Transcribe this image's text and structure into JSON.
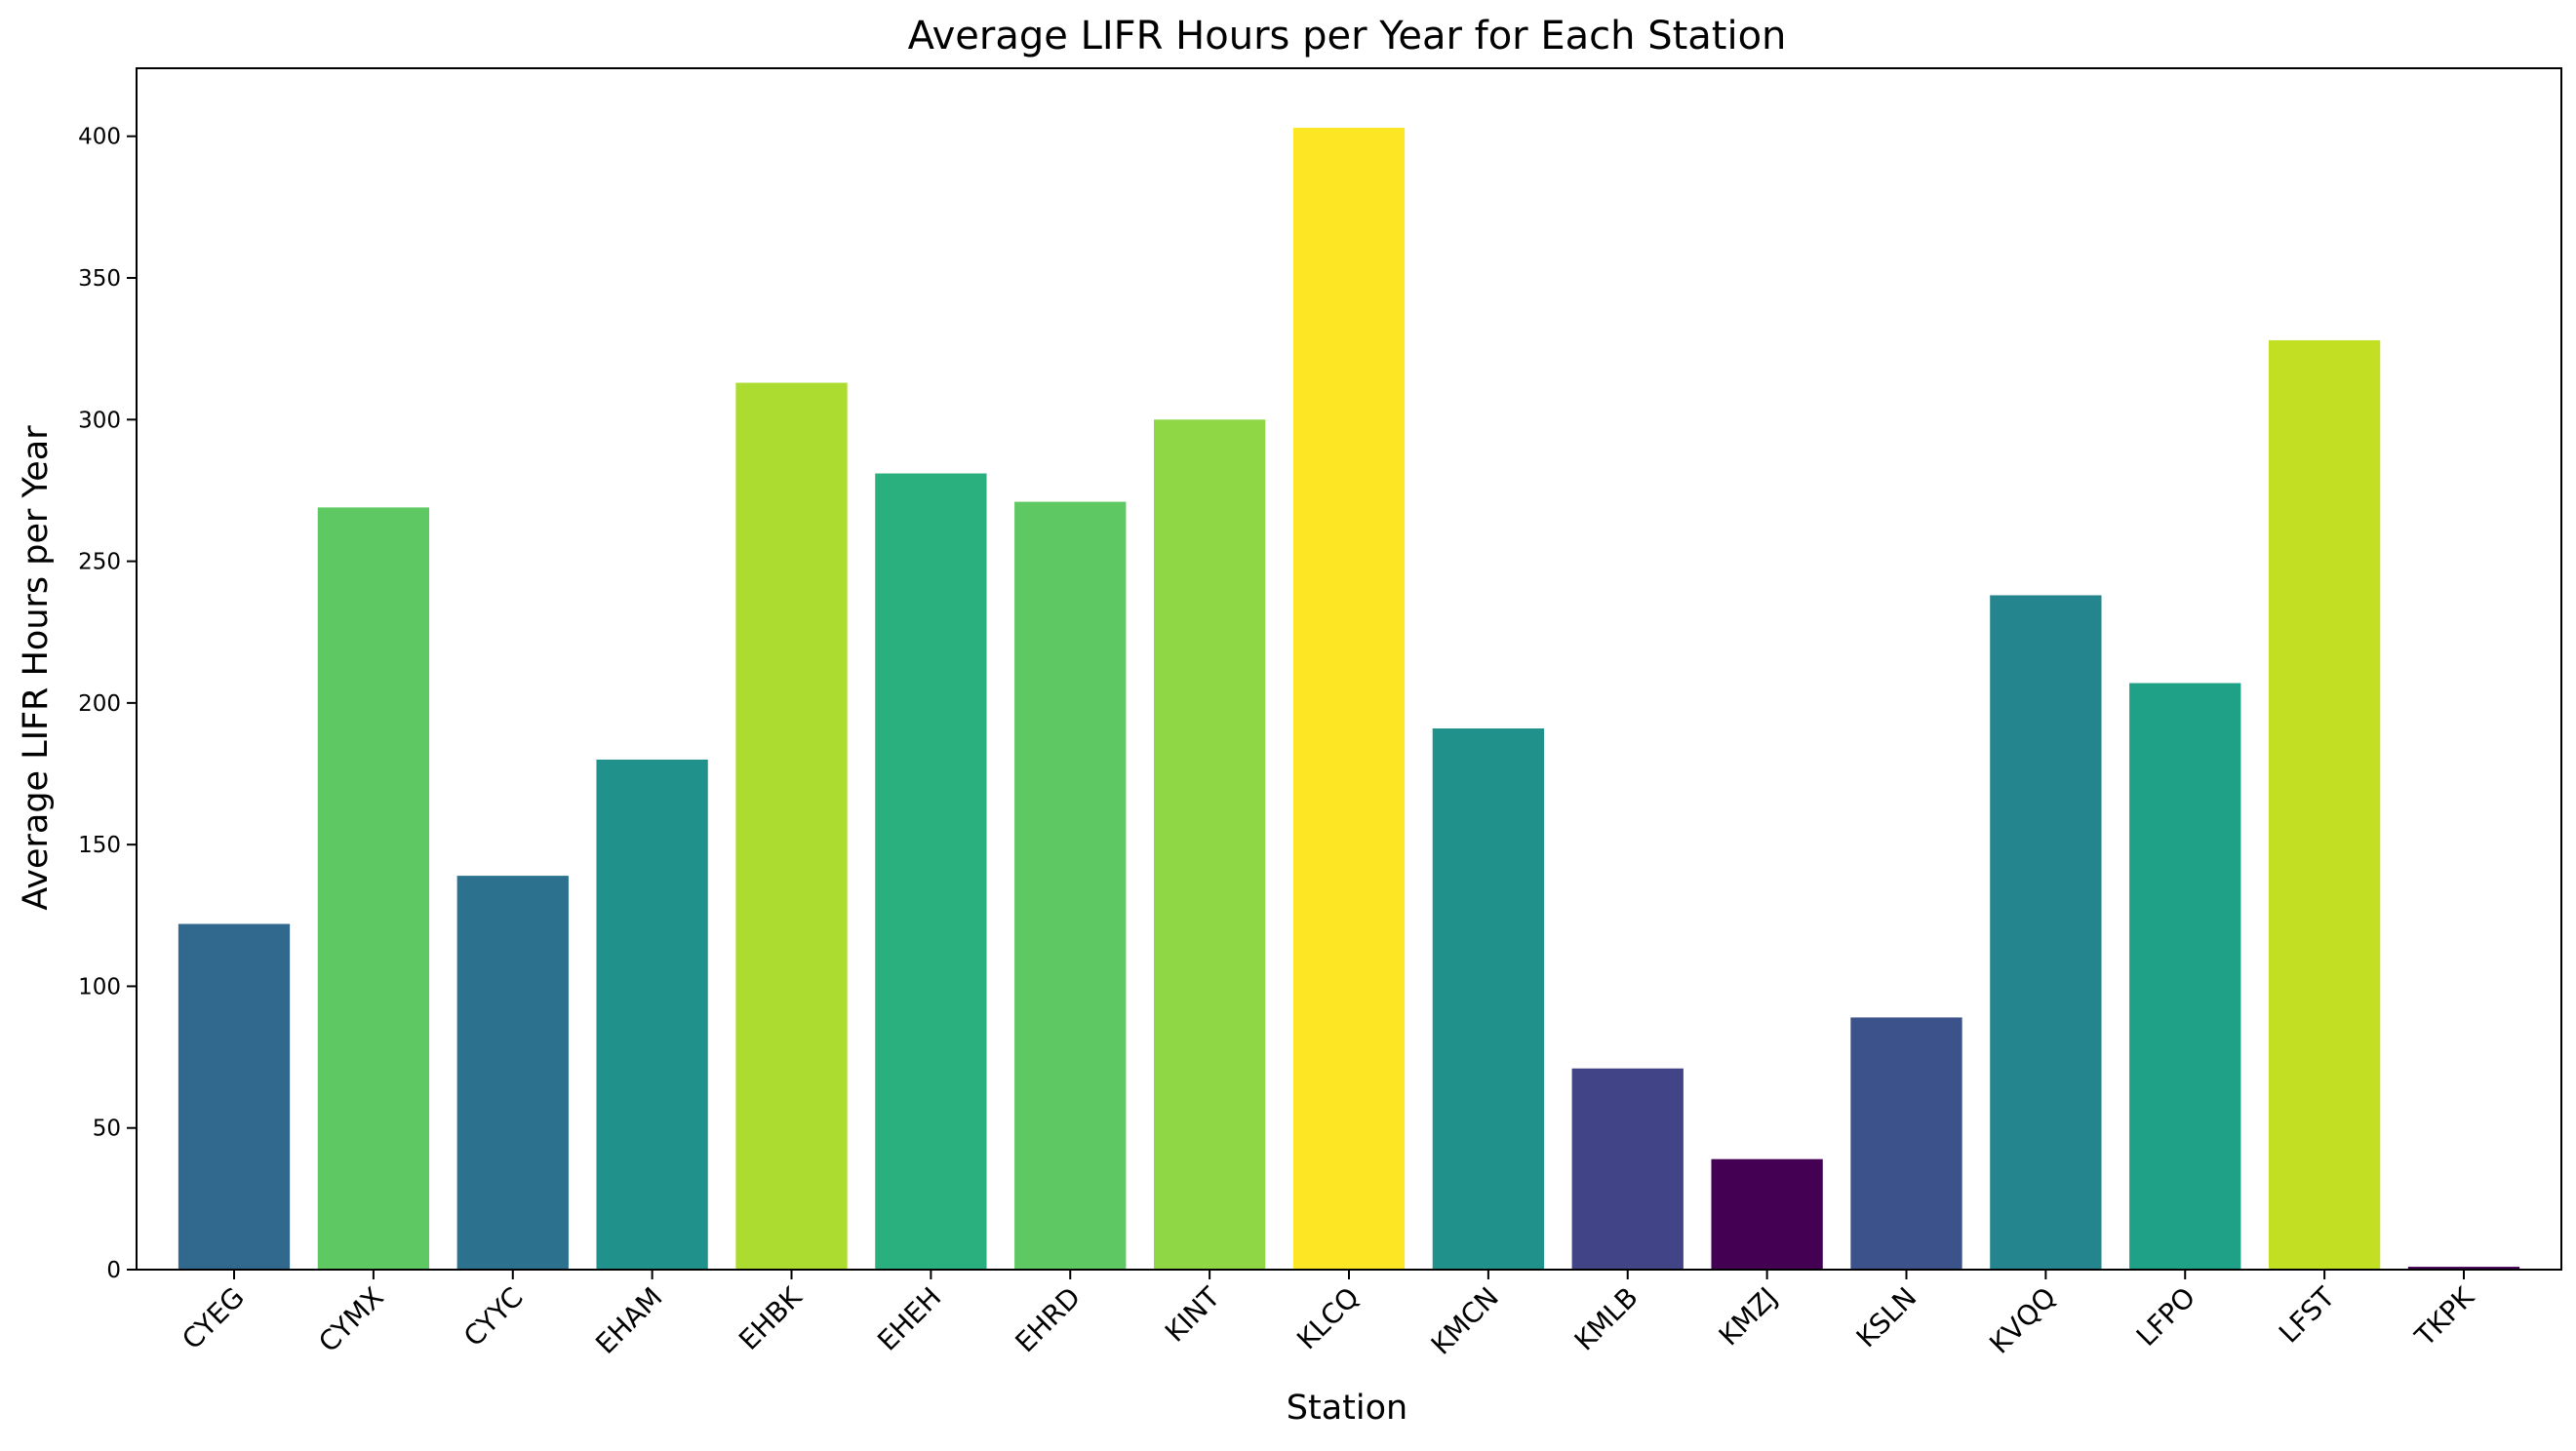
{
  "chart_data": {
    "type": "bar",
    "title": "Average LIFR Hours per Year for Each Station",
    "xlabel": "Station",
    "ylabel": "Average LIFR Hours per Year",
    "ylim": [
      0,
      424
    ],
    "yticks": [
      0,
      50,
      100,
      150,
      200,
      250,
      300,
      350,
      400
    ],
    "grid": false,
    "legend": "none",
    "categories": [
      "CYEG",
      "CYMX",
      "CYYC",
      "EHAM",
      "EHBK",
      "EHEH",
      "EHRD",
      "KINT",
      "KLCQ",
      "KMCN",
      "KMLB",
      "KMZJ",
      "KSLN",
      "KVQQ",
      "LFPO",
      "LFST",
      "TKPK"
    ],
    "values": [
      122,
      269,
      139,
      180,
      313,
      281,
      271,
      300,
      403,
      191,
      71,
      39,
      89,
      238,
      207,
      328,
      1
    ],
    "colors": [
      "#31688e",
      "#5ec962",
      "#2c728e",
      "#21918c",
      "#addc30",
      "#2ab07f",
      "#5ec962",
      "#8fd744",
      "#fde725",
      "#21918c",
      "#414487",
      "#440154",
      "#3b528b",
      "#25858e",
      "#1fa187",
      "#c2df23",
      "#440154"
    ]
  }
}
